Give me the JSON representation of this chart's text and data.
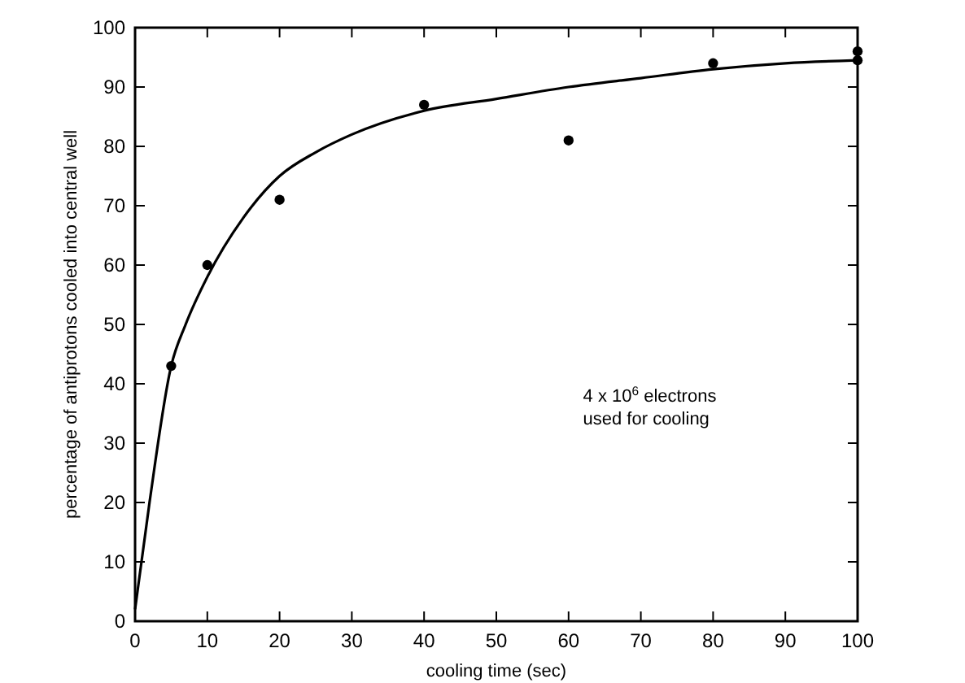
{
  "chart_data": {
    "type": "scatter",
    "xlabel": "cooling time (sec)",
    "ylabel": "percentage of antiprotons cooled into central well",
    "xlim": [
      0,
      100
    ],
    "ylim": [
      0,
      100
    ],
    "xticks": [
      0,
      10,
      20,
      30,
      40,
      50,
      60,
      70,
      80,
      90,
      100
    ],
    "yticks": [
      0,
      10,
      20,
      30,
      40,
      50,
      60,
      70,
      80,
      90,
      100
    ],
    "grid": false,
    "annotations": [
      "4 x 10$^{6}$ electrons\nused for cooling"
    ],
    "series": [
      {
        "color": "#000000",
        "marker": "circle",
        "x": [
          5,
          10,
          20,
          40,
          60,
          80,
          100,
          100
        ],
        "values": [
          43,
          60,
          71,
          87,
          81,
          94,
          96,
          94.5
        ]
      },
      {
        "type": "line",
        "color": "#000000",
        "marker": "none",
        "line_style": "solid",
        "x": [
          0,
          2,
          5,
          7,
          10,
          15,
          20,
          25,
          30,
          40,
          50,
          60,
          70,
          80,
          90,
          100
        ],
        "values": [
          2,
          20,
          43,
          50,
          58,
          68,
          75,
          79,
          82,
          86,
          88,
          90,
          91.5,
          93,
          94,
          94.5
        ]
      }
    ]
  }
}
